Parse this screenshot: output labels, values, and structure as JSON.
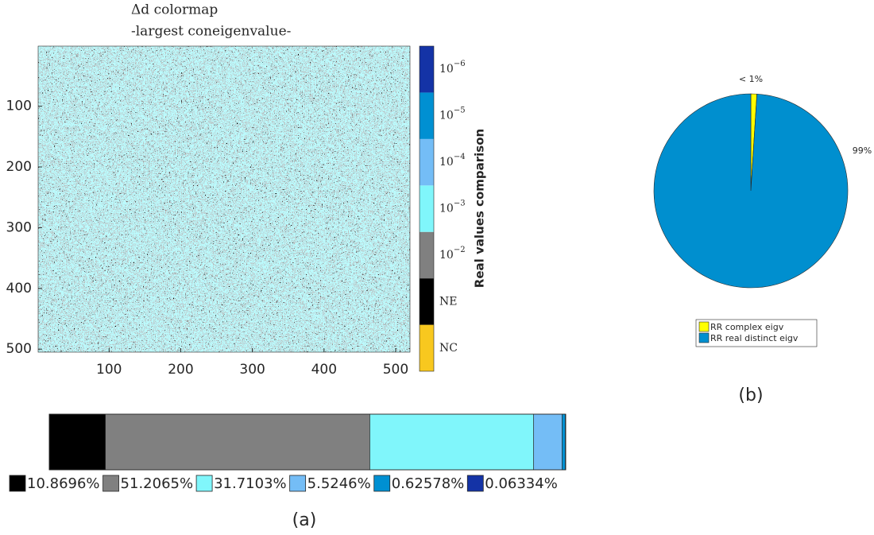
{
  "chart_data": [
    {
      "type": "heatmap",
      "title": [
        "Δd colormap",
        "-largest coneigenvalue-"
      ],
      "xlim": [
        1,
        520
      ],
      "ylim": [
        1,
        505
      ],
      "xticks": [
        100,
        200,
        300,
        400,
        500
      ],
      "yticks": [
        100,
        200,
        300,
        400,
        500
      ],
      "colorbar": {
        "label": "Real values comparison",
        "categories": [
          {
            "text": "NC"
          },
          {
            "text": "NE"
          },
          {
            "base": "10",
            "exp": "−2"
          },
          {
            "base": "10",
            "exp": "−3"
          },
          {
            "base": "10",
            "exp": "−4"
          },
          {
            "base": "10",
            "exp": "−5"
          },
          {
            "base": "10",
            "exp": "−6"
          }
        ],
        "colors": [
          "#f8c81f",
          "#000000",
          "#808080",
          "#80f6fb",
          "#74bdf6",
          "#0090d2",
          "#1433a6"
        ]
      }
    },
    {
      "type": "stacked_bar",
      "values": [
        10.8696,
        51.2065,
        31.7103,
        5.5246,
        0.62578,
        0.06334
      ],
      "value_labels": [
        "10.8696%",
        "51.2065%",
        "31.7103%",
        "5.5246%",
        "0.62578%",
        "0.06334%"
      ],
      "colors": [
        "#000000",
        "#808080",
        "#80f6fb",
        "#74bdf6",
        "#0090d2",
        "#1433a6"
      ],
      "xlim": [
        0,
        100
      ],
      "caption": "(a)"
    },
    {
      "type": "pie",
      "categories": [
        "RR complex eigv",
        "RR real distinct eigv"
      ],
      "values": [
        1,
        99
      ],
      "value_labels": [
        "< 1%",
        "99%"
      ],
      "colors": [
        "#ffff00",
        "#008fcf"
      ],
      "caption": "(b)"
    }
  ]
}
